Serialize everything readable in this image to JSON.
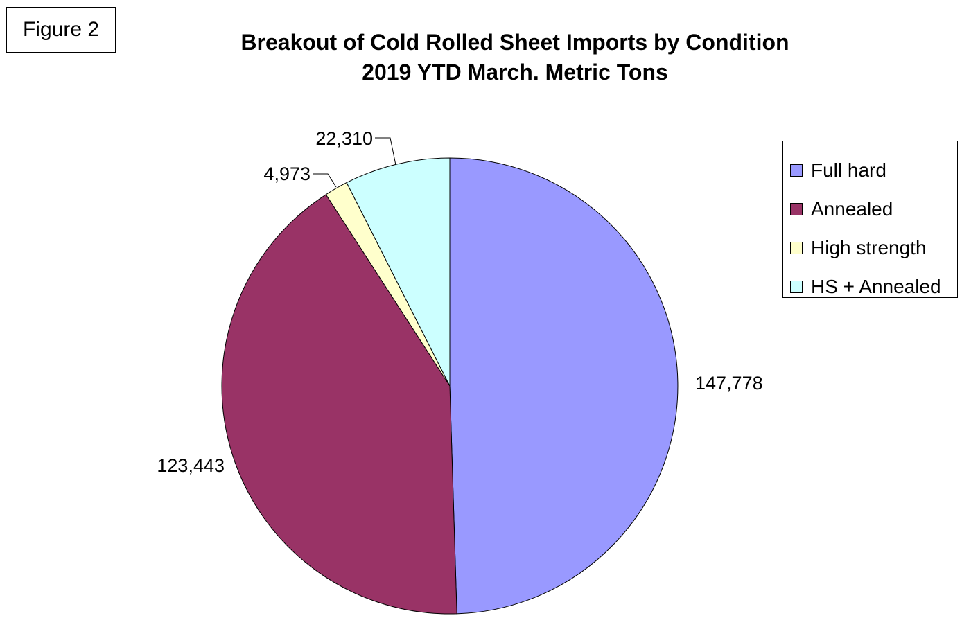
{
  "figure_label": "Figure 2",
  "chart_data": {
    "type": "pie",
    "title": "Breakout of Cold Rolled Sheet Imports by Condition",
    "subtitle": "2019 YTD March. Metric Tons",
    "legend_position": "right",
    "slices": [
      {
        "name": "Full hard",
        "value": 147778,
        "label": "147,778",
        "color": "#9999ff"
      },
      {
        "name": "Annealed",
        "value": 123443,
        "label": "123,443",
        "color": "#993366"
      },
      {
        "name": "High strength",
        "value": 4973,
        "label": "4,973",
        "color": "#ffffcc"
      },
      {
        "name": "HS + Annealed",
        "value": 22310,
        "label": "22,310",
        "color": "#ccffff"
      }
    ]
  }
}
